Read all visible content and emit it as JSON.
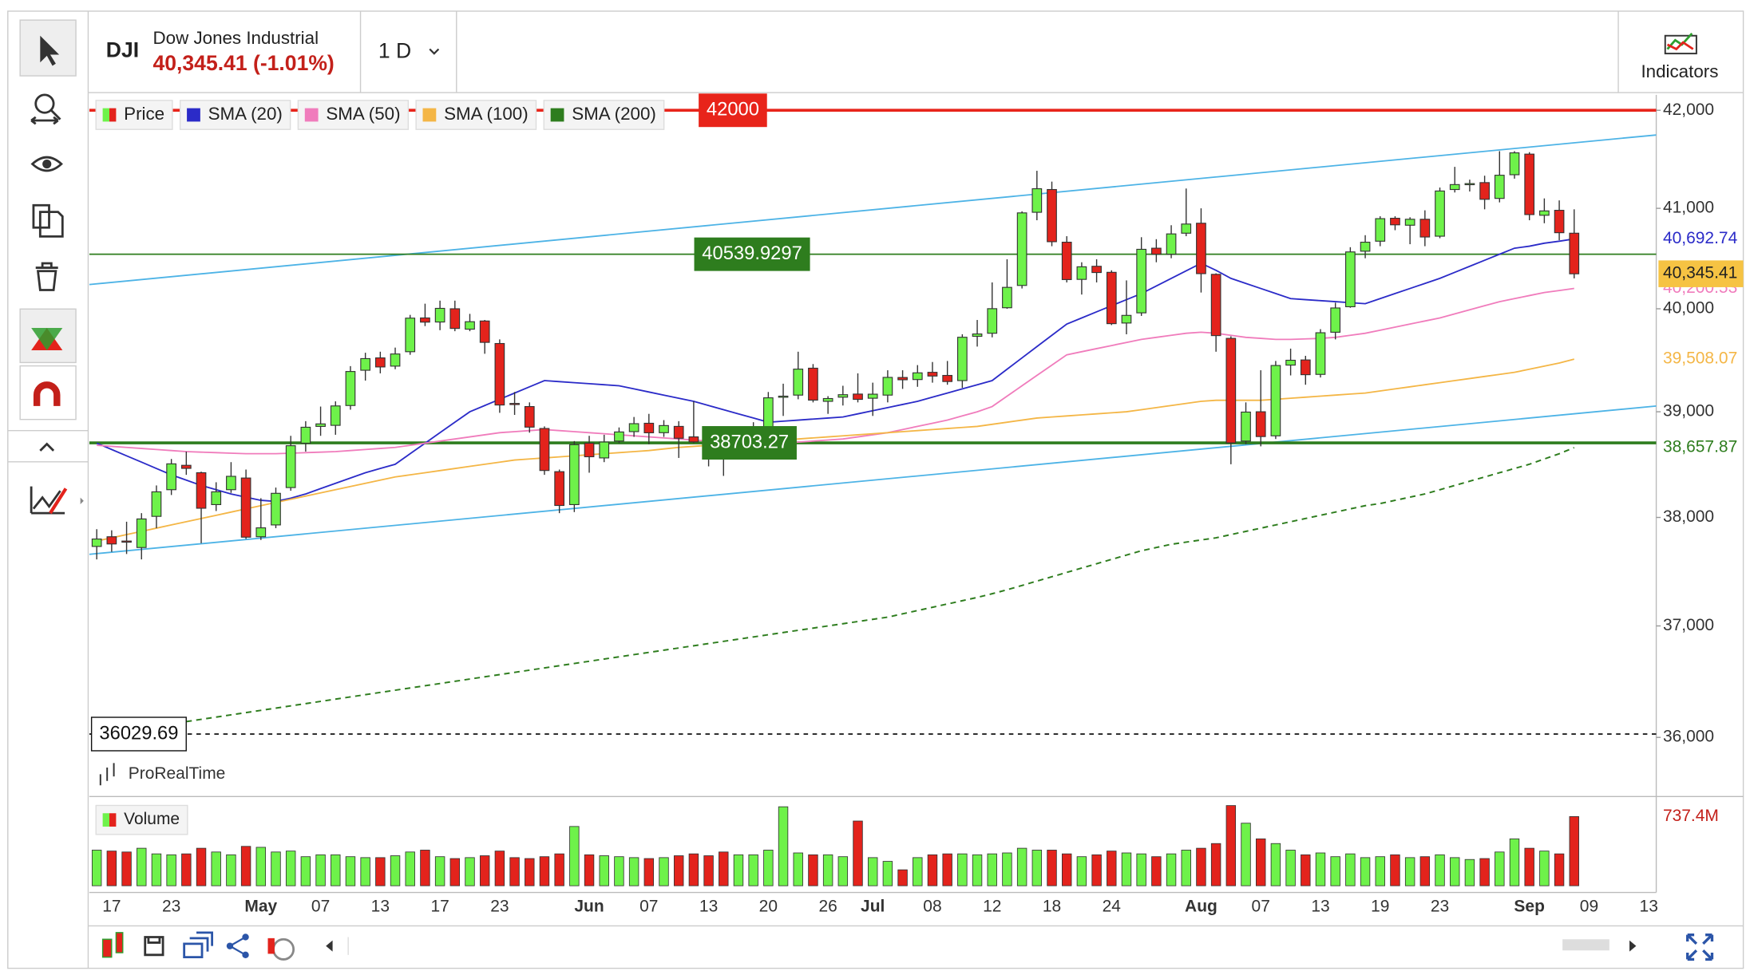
{
  "header": {
    "symbol": "DJI",
    "name": "Dow Jones Industrial",
    "quote": "40,345.41 (-1.01%)",
    "interval": "1 D",
    "indicators": "Indicators",
    "brand": "ProRealTime"
  },
  "chart_data": {
    "type": "candlestick",
    "log_scale": true,
    "grid": false,
    "ylim": [
      35500,
      42160
    ],
    "yticks": [
      {
        "value": 42000,
        "label": "42,000"
      },
      {
        "value": 41000,
        "label": "41,000"
      },
      {
        "value": 40000,
        "label": "40,000"
      },
      {
        "value": 39000,
        "label": "39,000"
      },
      {
        "value": 38000,
        "label": "38,000"
      },
      {
        "value": 37000,
        "label": "37,000"
      },
      {
        "value": 36000,
        "label": "36,000"
      }
    ],
    "categories": [
      null,
      "17",
      null,
      null,
      null,
      "23",
      null,
      null,
      null,
      null,
      null,
      "May",
      null,
      null,
      null,
      "07",
      null,
      null,
      null,
      "13",
      null,
      null,
      null,
      "17",
      null,
      null,
      null,
      "23",
      null,
      null,
      null,
      null,
      null,
      "Jun",
      null,
      null,
      null,
      "07",
      null,
      null,
      null,
      "13",
      null,
      null,
      null,
      "20",
      null,
      null,
      null,
      "26",
      null,
      null,
      "Jul",
      null,
      null,
      null,
      "08",
      null,
      null,
      null,
      "12",
      null,
      null,
      null,
      "18",
      null,
      null,
      null,
      "24",
      null,
      null,
      null,
      null,
      null,
      "Aug",
      null,
      null,
      null,
      "07",
      null,
      null,
      null,
      "13",
      null,
      null,
      null,
      "19",
      null,
      null,
      null,
      "23",
      null,
      null,
      null,
      null,
      null,
      "Sep",
      null,
      null,
      null,
      "09",
      null,
      null,
      null,
      "13"
    ],
    "candles": {
      "name": "Price",
      "up_color": "#6ef24a",
      "down_color": "#e3231c",
      "last_label": "40,345.41",
      "open": [
        37730,
        37820,
        37780,
        37720,
        38010,
        38260,
        38490,
        38420,
        38120,
        38260,
        38370,
        37820,
        37930,
        38280,
        38700,
        38860,
        38870,
        39060,
        39400,
        39520,
        39440,
        39580,
        39910,
        39870,
        40000,
        39800,
        39880,
        39660,
        39080,
        39050,
        38840,
        38430,
        38120,
        38700,
        38560,
        38720,
        38810,
        38890,
        38800,
        38860,
        38760,
        38720,
        38630,
        38580,
        38790,
        38850,
        39140,
        39160,
        39420,
        39100,
        39140,
        39170,
        39130,
        39160,
        39330,
        39310,
        39380,
        39350,
        39300,
        39730,
        39760,
        40010,
        40230,
        40960,
        41190,
        40660,
        40290,
        40420,
        40360,
        39860,
        39960,
        40600,
        40540,
        40750,
        40850,
        40340,
        39710,
        38720,
        39000,
        38770,
        39450,
        39500,
        39360,
        39770,
        40020,
        40570,
        40670,
        40900,
        40830,
        40890,
        40720,
        41190,
        41250,
        41260,
        41100,
        41340,
        41550,
        40930,
        40980,
        40750,
        null,
        null,
        null,
        null,
        null
      ],
      "high": [
        37890,
        37880,
        37960,
        38040,
        38300,
        38550,
        38620,
        38430,
        38330,
        38520,
        38450,
        38180,
        38280,
        38770,
        38910,
        39050,
        39100,
        39440,
        39570,
        39580,
        39620,
        39940,
        40050,
        40080,
        40080,
        39950,
        39890,
        39700,
        39190,
        39090,
        38860,
        38450,
        38720,
        38770,
        38780,
        38850,
        38950,
        38980,
        38920,
        38910,
        39100,
        38780,
        38720,
        38850,
        38900,
        39190,
        39270,
        39580,
        39460,
        39150,
        39250,
        39370,
        39280,
        39400,
        39400,
        39450,
        39480,
        39490,
        39750,
        39890,
        40260,
        40490,
        40970,
        41380,
        41270,
        40720,
        40460,
        40490,
        40380,
        40280,
        40710,
        40690,
        40830,
        41200,
        41000,
        40350,
        39730,
        39090,
        39400,
        39490,
        39610,
        39540,
        39800,
        40060,
        40610,
        40730,
        40920,
        40920,
        40910,
        40980,
        41210,
        41420,
        41290,
        41330,
        41580,
        41580,
        41570,
        41100,
        41080,
        40990,
        null,
        null,
        null,
        null,
        null
      ],
      "low": [
        37610,
        37680,
        37660,
        37610,
        37900,
        38210,
        38400,
        37760,
        38060,
        38230,
        37800,
        37790,
        37900,
        38250,
        38620,
        38770,
        38780,
        39020,
        39300,
        39370,
        39410,
        39550,
        39830,
        39790,
        39780,
        39780,
        39560,
        38990,
        38970,
        38800,
        38400,
        38040,
        38050,
        38420,
        38520,
        38700,
        38760,
        38690,
        38760,
        38560,
        38700,
        38480,
        38390,
        38550,
        38770,
        38800,
        38960,
        39120,
        39090,
        38980,
        39060,
        39090,
        38960,
        39090,
        39220,
        39240,
        39280,
        39260,
        39230,
        39630,
        39720,
        40000,
        40200,
        40880,
        40620,
        40260,
        40140,
        40260,
        39840,
        39750,
        39930,
        40460,
        40500,
        40720,
        40160,
        39580,
        38500,
        38690,
        38670,
        38740,
        39350,
        39260,
        39330,
        39700,
        40010,
        40500,
        40620,
        40780,
        40640,
        40620,
        40700,
        41160,
        41170,
        40990,
        41060,
        41300,
        40880,
        40850,
        40680,
        40300,
        null,
        null,
        null,
        null,
        null
      ],
      "close": [
        37799,
        37753,
        37775,
        37986,
        38240,
        38504,
        38461,
        38086,
        38240,
        38386,
        37816,
        37903,
        38226,
        38676,
        38852,
        38884,
        39056,
        39388,
        39513,
        39432,
        39558,
        39908,
        39869,
        40004,
        39807,
        39873,
        39671,
        39065,
        39070,
        38853,
        38441,
        38112,
        38686,
        38571,
        38711,
        38807,
        38886,
        38799,
        38868,
        38747,
        38712,
        38647,
        38589,
        38778,
        38834,
        39134,
        39150,
        39411,
        39112,
        39127,
        39164,
        39119,
        39169,
        39331,
        39308,
        39375,
        39344,
        39291,
        39721,
        39753,
        40001,
        40211,
        40954,
        41198,
        40665,
        40288,
        40415,
        40358,
        39854,
        39935,
        40589,
        40540,
        40743,
        40842,
        40347,
        39737,
        38703,
        38997,
        38763,
        39446,
        39497,
        39357,
        39765,
        40008,
        40563,
        40660,
        40896,
        40834,
        40890,
        40712,
        41175,
        41240,
        41250,
        41091,
        41335,
        41563,
        40937,
        40974,
        40755,
        40345.41,
        null,
        null,
        null,
        null,
        null
      ]
    },
    "sma": [
      {
        "name": "SMA (20)",
        "color": "#2b2bc8",
        "last_label": "40,692.74",
        "values": [
          38700,
          38640,
          38580,
          38520,
          38460,
          38400,
          38350,
          38300,
          38260,
          38220,
          38190,
          38160,
          38150,
          38180,
          38220,
          38270,
          38320,
          38370,
          38420,
          38460,
          38500,
          38600,
          38700,
          38800,
          38900,
          39000,
          39060,
          39120,
          39180,
          39240,
          39300,
          39290,
          39280,
          39270,
          39260,
          39250,
          39220,
          39190,
          39160,
          39130,
          39100,
          39060,
          39020,
          38980,
          38940,
          38900,
          38910,
          38920,
          38930,
          38940,
          38950,
          38980,
          39010,
          39040,
          39070,
          39100,
          39140,
          39180,
          39220,
          39260,
          39300,
          39410,
          39520,
          39630,
          39740,
          39850,
          39910,
          39970,
          40030,
          40090,
          40150,
          40225,
          40300,
          40375,
          40450,
          40380,
          40300,
          40250,
          40200,
          40150,
          40100,
          40090,
          40080,
          40070,
          40060,
          40050,
          40100,
          40150,
          40200,
          40250,
          40300,
          40360,
          40420,
          40480,
          40540,
          40600,
          40620,
          40650,
          40670,
          40692.74,
          null,
          null,
          null,
          null,
          null
        ]
      },
      {
        "name": "SMA (50)",
        "color": "#f07cbc",
        "last_label": "40,200.53",
        "values": [
          38680,
          38670,
          38660,
          38650,
          38640,
          38630,
          38620,
          38615,
          38610,
          38605,
          38600,
          38600,
          38600,
          38605,
          38610,
          38615,
          38620,
          38630,
          38640,
          38650,
          38660,
          38680,
          38700,
          38720,
          38740,
          38760,
          38780,
          38800,
          38810,
          38820,
          38830,
          38820,
          38810,
          38800,
          38790,
          38780,
          38770,
          38760,
          38750,
          38740,
          38730,
          38720,
          38710,
          38700,
          38700,
          38700,
          38700,
          38710,
          38720,
          38730,
          38740,
          38760,
          38780,
          38800,
          38830,
          38860,
          38890,
          38920,
          38960,
          39000,
          39050,
          39150,
          39250,
          39350,
          39450,
          39550,
          39580,
          39610,
          39640,
          39670,
          39700,
          39720,
          39740,
          39760,
          39770,
          39760,
          39740,
          39720,
          39710,
          39700,
          39700,
          39705,
          39710,
          39720,
          39740,
          39760,
          39790,
          39820,
          39850,
          39880,
          39910,
          39950,
          39990,
          40030,
          40070,
          40100,
          40130,
          40160,
          40180,
          40200.53,
          null,
          null,
          null,
          null,
          null
        ]
      },
      {
        "name": "SMA (100)",
        "color": "#f4b646",
        "last_label": "39,508.07",
        "values": [
          37780,
          37810,
          37840,
          37870,
          37900,
          37930,
          37960,
          37990,
          38020,
          38050,
          38080,
          38110,
          38140,
          38170,
          38200,
          38230,
          38260,
          38290,
          38320,
          38350,
          38380,
          38400,
          38420,
          38440,
          38460,
          38480,
          38500,
          38520,
          38540,
          38550,
          38560,
          38570,
          38580,
          38590,
          38600,
          38610,
          38620,
          38630,
          38645,
          38660,
          38670,
          38680,
          38690,
          38700,
          38710,
          38720,
          38730,
          38740,
          38750,
          38760,
          38770,
          38780,
          38790,
          38800,
          38810,
          38820,
          38830,
          38840,
          38850,
          38860,
          38880,
          38900,
          38920,
          38940,
          38950,
          38960,
          38970,
          38980,
          38990,
          39000,
          39020,
          39040,
          39060,
          39080,
          39100,
          39110,
          39110,
          39110,
          39110,
          39120,
          39130,
          39140,
          39150,
          39160,
          39170,
          39180,
          39200,
          39220,
          39240,
          39260,
          39280,
          39300,
          39320,
          39340,
          39360,
          39380,
          39410,
          39440,
          39470,
          39508.07,
          null,
          null,
          null,
          null,
          null
        ]
      },
      {
        "name": "SMA (200)",
        "color": "#2e7d1e",
        "dashed": true,
        "last_label": "38,657.87",
        "values": [
          null,
          null,
          null,
          null,
          null,
          null,
          36140,
          36160,
          36180,
          36200,
          36220,
          36240,
          36260,
          36280,
          36300,
          36320,
          36340,
          36360,
          36380,
          36400,
          36420,
          36440,
          36460,
          36480,
          36500,
          36520,
          36540,
          36560,
          36580,
          36600,
          36620,
          36640,
          36660,
          36680,
          36700,
          36720,
          36740,
          36760,
          36780,
          36800,
          36820,
          36840,
          36860,
          36880,
          36900,
          36920,
          36940,
          36960,
          36980,
          37000,
          37020,
          37040,
          37060,
          37080,
          37110,
          37140,
          37170,
          37200,
          37230,
          37260,
          37294,
          37330,
          37370,
          37410,
          37450,
          37490,
          37530,
          37570,
          37610,
          37650,
          37690,
          37720,
          37750,
          37770,
          37790,
          37810,
          37840,
          37870,
          37900,
          37930,
          37960,
          37990,
          38020,
          38050,
          38080,
          38110,
          38130,
          38160,
          38190,
          38220,
          38260,
          38300,
          38340,
          38380,
          38420,
          38460,
          38500,
          38550,
          38600,
          38657.87,
          null,
          null,
          null,
          null,
          null
        ]
      }
    ],
    "hlines": [
      {
        "value": 42000,
        "label": "42000",
        "color": "#e8241a"
      },
      {
        "value": 40539.9297,
        "label": "40539.9297",
        "color": "#2e7d1e"
      },
      {
        "value": 38703.27,
        "label": "38703.27",
        "color": "#2e7d1e"
      },
      {
        "value": 36029.69,
        "label": "36029.69",
        "color": "#111111",
        "dashed": true
      }
    ],
    "trendlines": [
      {
        "start": 40239,
        "end": 41746,
        "color": "#4db3e6"
      },
      {
        "start": 37657,
        "end": 39055,
        "color": "#4db3e6"
      }
    ],
    "volume": {
      "name": "Volume",
      "ylim": [
        0,
        880
      ],
      "values": [
        380,
        370,
        360,
        400,
        340,
        330,
        340,
        400,
        360,
        330,
        420,
        410,
        360,
        370,
        310,
        330,
        330,
        310,
        300,
        300,
        320,
        360,
        380,
        310,
        290,
        300,
        320,
        370,
        300,
        290,
        310,
        340,
        632,
        330,
        320,
        310,
        300,
        290,
        300,
        320,
        340,
        320,
        360,
        330,
        330,
        380,
        842,
        350,
        330,
        330,
        310,
        690,
        300,
        260,
        170,
        300,
        330,
        340,
        340,
        330,
        340,
        350,
        400,
        380,
        380,
        340,
        310,
        330,
        370,
        350,
        340,
        310,
        340,
        380,
        400,
        450,
        855,
        667,
        500,
        450,
        380,
        330,
        350,
        310,
        340,
        300,
        310,
        330,
        300,
        310,
        330,
        300,
        280,
        290,
        360,
        500,
        400,
        370,
        340,
        737.4,
        null,
        null,
        null,
        null,
        null
      ],
      "value_labels": [
        null,
        null,
        null,
        null,
        null,
        null,
        null,
        null,
        null,
        null,
        null,
        null,
        null,
        null,
        null,
        null,
        null,
        null,
        null,
        null,
        null,
        null,
        null,
        null,
        null,
        null,
        null,
        null,
        null,
        null,
        null,
        null,
        null,
        null,
        null,
        null,
        null,
        null,
        null,
        null,
        null,
        null,
        null,
        null,
        null,
        null,
        null,
        null,
        null,
        null,
        null,
        null,
        null,
        null,
        null,
        null,
        null,
        null,
        null,
        null,
        null,
        null,
        null,
        null,
        null,
        null,
        null,
        null,
        null,
        null,
        null,
        null,
        null,
        null,
        null,
        null,
        null,
        null,
        null,
        null,
        null,
        null,
        null,
        null,
        null,
        null,
        null,
        null,
        null,
        null,
        null,
        null,
        null,
        null,
        null,
        null,
        null,
        null,
        null,
        "737.4M",
        null,
        null,
        null,
        null,
        null
      ]
    }
  }
}
